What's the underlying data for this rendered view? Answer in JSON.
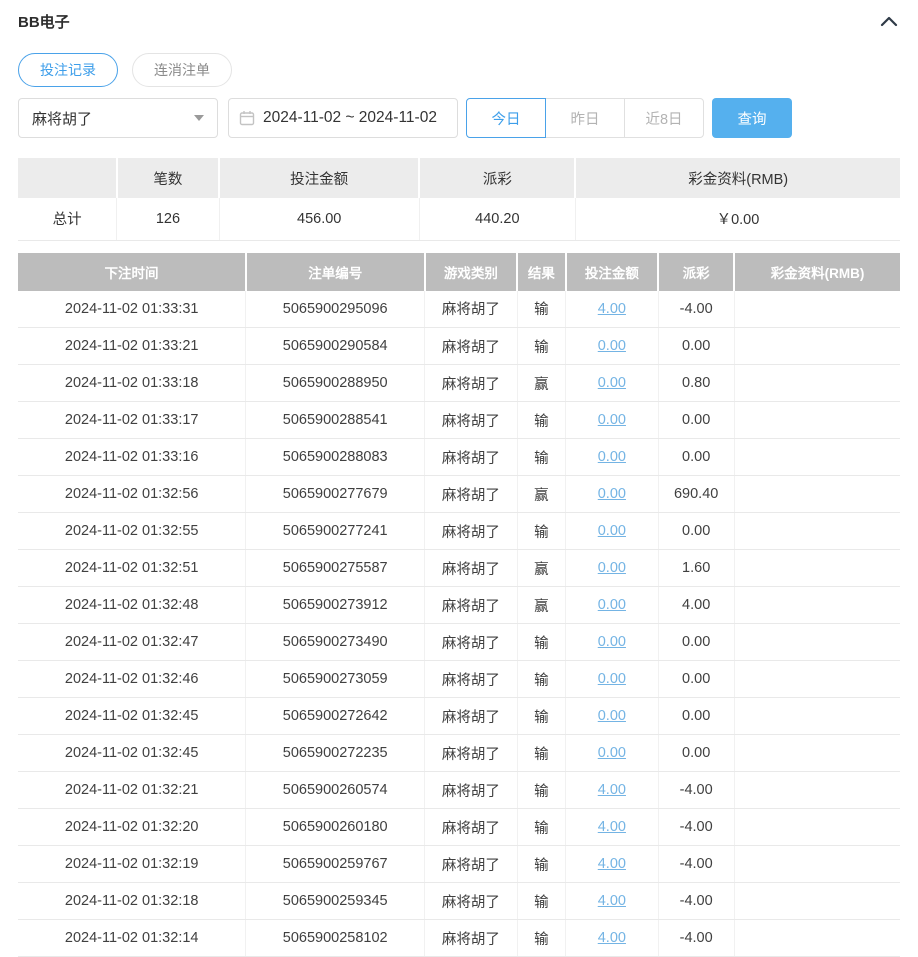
{
  "colors": {
    "accent_blue": "#3d9eea",
    "query_button_bg": "#55b0ee",
    "link_blue": "#74b4e4",
    "negative_red": "#e25c68",
    "records_header_bg": "#bcbcbc",
    "summary_header_bg": "#ececec"
  },
  "header": {
    "title": "BB电子",
    "collapse_icon": "chevron-up"
  },
  "tabs": [
    {
      "label": "投注记录",
      "active": true
    },
    {
      "label": "连消注单",
      "active": false
    }
  ],
  "filters": {
    "game_select": {
      "value": "麻将胡了",
      "icon": "caret-down"
    },
    "date_range": {
      "value": "2024-11-02 ~ 2024-11-02",
      "icon": "calendar"
    },
    "quick_ranges": [
      {
        "label": "今日",
        "active": true
      },
      {
        "label": "昨日",
        "active": false
      },
      {
        "label": "近8日",
        "active": false
      }
    ],
    "query_button": "查询"
  },
  "summary": {
    "headers": [
      "",
      "笔数",
      "投注金额",
      "派彩",
      "彩金资料(RMB)"
    ],
    "total": {
      "label": "总计",
      "count": "126",
      "bet_amount": "456.00",
      "payout": "440.20",
      "jackpot": "￥0.00"
    }
  },
  "records": {
    "headers": [
      "下注时间",
      "注单编号",
      "游戏类别",
      "结果",
      "投注金额",
      "派彩",
      "彩金资料(RMB)"
    ],
    "rows": [
      {
        "time": "2024-11-02 01:33:31",
        "order_no": "5065900295096",
        "game": "麻将胡了",
        "result": "输",
        "bet": "4.00",
        "payout": "-4.00",
        "jackpot": ""
      },
      {
        "time": "2024-11-02 01:33:21",
        "order_no": "5065900290584",
        "game": "麻将胡了",
        "result": "输",
        "bet": "0.00",
        "payout": "0.00",
        "jackpot": ""
      },
      {
        "time": "2024-11-02 01:33:18",
        "order_no": "5065900288950",
        "game": "麻将胡了",
        "result": "赢",
        "bet": "0.00",
        "payout": "0.80",
        "jackpot": ""
      },
      {
        "time": "2024-11-02 01:33:17",
        "order_no": "5065900288541",
        "game": "麻将胡了",
        "result": "输",
        "bet": "0.00",
        "payout": "0.00",
        "jackpot": ""
      },
      {
        "time": "2024-11-02 01:33:16",
        "order_no": "5065900288083",
        "game": "麻将胡了",
        "result": "输",
        "bet": "0.00",
        "payout": "0.00",
        "jackpot": ""
      },
      {
        "time": "2024-11-02 01:32:56",
        "order_no": "5065900277679",
        "game": "麻将胡了",
        "result": "赢",
        "bet": "0.00",
        "payout": "690.40",
        "jackpot": ""
      },
      {
        "time": "2024-11-02 01:32:55",
        "order_no": "5065900277241",
        "game": "麻将胡了",
        "result": "输",
        "bet": "0.00",
        "payout": "0.00",
        "jackpot": ""
      },
      {
        "time": "2024-11-02 01:32:51",
        "order_no": "5065900275587",
        "game": "麻将胡了",
        "result": "赢",
        "bet": "0.00",
        "payout": "1.60",
        "jackpot": ""
      },
      {
        "time": "2024-11-02 01:32:48",
        "order_no": "5065900273912",
        "game": "麻将胡了",
        "result": "赢",
        "bet": "0.00",
        "payout": "4.00",
        "jackpot": ""
      },
      {
        "time": "2024-11-02 01:32:47",
        "order_no": "5065900273490",
        "game": "麻将胡了",
        "result": "输",
        "bet": "0.00",
        "payout": "0.00",
        "jackpot": ""
      },
      {
        "time": "2024-11-02 01:32:46",
        "order_no": "5065900273059",
        "game": "麻将胡了",
        "result": "输",
        "bet": "0.00",
        "payout": "0.00",
        "jackpot": ""
      },
      {
        "time": "2024-11-02 01:32:45",
        "order_no": "5065900272642",
        "game": "麻将胡了",
        "result": "输",
        "bet": "0.00",
        "payout": "0.00",
        "jackpot": ""
      },
      {
        "time": "2024-11-02 01:32:45",
        "order_no": "5065900272235",
        "game": "麻将胡了",
        "result": "输",
        "bet": "0.00",
        "payout": "0.00",
        "jackpot": ""
      },
      {
        "time": "2024-11-02 01:32:21",
        "order_no": "5065900260574",
        "game": "麻将胡了",
        "result": "输",
        "bet": "4.00",
        "payout": "-4.00",
        "jackpot": ""
      },
      {
        "time": "2024-11-02 01:32:20",
        "order_no": "5065900260180",
        "game": "麻将胡了",
        "result": "输",
        "bet": "4.00",
        "payout": "-4.00",
        "jackpot": ""
      },
      {
        "time": "2024-11-02 01:32:19",
        "order_no": "5065900259767",
        "game": "麻将胡了",
        "result": "输",
        "bet": "4.00",
        "payout": "-4.00",
        "jackpot": ""
      },
      {
        "time": "2024-11-02 01:32:18",
        "order_no": "5065900259345",
        "game": "麻将胡了",
        "result": "输",
        "bet": "4.00",
        "payout": "-4.00",
        "jackpot": ""
      },
      {
        "time": "2024-11-02 01:32:14",
        "order_no": "5065900258102",
        "game": "麻将胡了",
        "result": "输",
        "bet": "4.00",
        "payout": "-4.00",
        "jackpot": ""
      }
    ]
  }
}
